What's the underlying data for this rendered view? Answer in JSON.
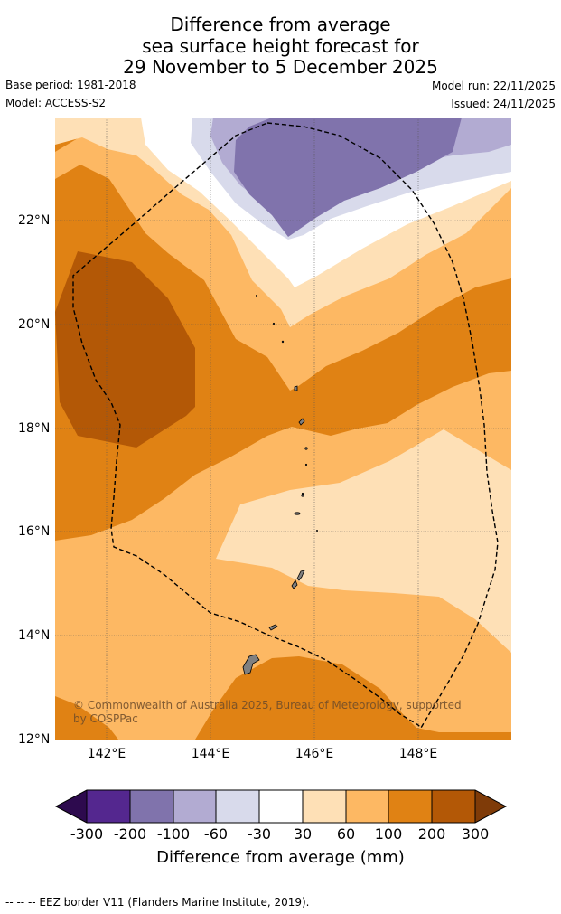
{
  "title": {
    "line1": "Difference from average",
    "line2": "sea surface height forecast for",
    "line3": "29 November to 5 December 2025"
  },
  "meta": {
    "base_period": "Base period: 1981-2018",
    "model": "Model: ACCESS-S2",
    "model_run": "Model run: 22/11/2025",
    "issued": "Issued: 24/11/2025"
  },
  "map": {
    "lat_labels": [
      "22°N",
      "20°N",
      "18°N",
      "16°N",
      "14°N",
      "12°N"
    ],
    "lon_labels": [
      "142°E",
      "144°E",
      "146°E",
      "148°E"
    ],
    "copyright": "© Commonwealth of Australia 2025, Bureau of Meteorology, supported by COSPPac",
    "lat_range": [
      12,
      24
    ],
    "lon_range": [
      141,
      149.8
    ]
  },
  "colorbar": {
    "ticks": [
      "-300",
      "-200",
      "-100",
      "-60",
      "-30",
      "30",
      "60",
      "100",
      "200",
      "300"
    ],
    "title": "Difference from average (mm)",
    "colors": {
      "extend_low": "#2d0a4e",
      "c1": "#54278f",
      "c2": "#8073ac",
      "c3": "#b2abd2",
      "c4": "#d8daeb",
      "c5": "#ffffff",
      "c6": "#fee0b6",
      "c7": "#fdb863",
      "c8": "#e08214",
      "c9": "#b35806",
      "extend_high": "#7f3b08"
    }
  },
  "footer": "--  --  -- EEZ border V11 (Flanders Marine Institute, 2019)."
}
